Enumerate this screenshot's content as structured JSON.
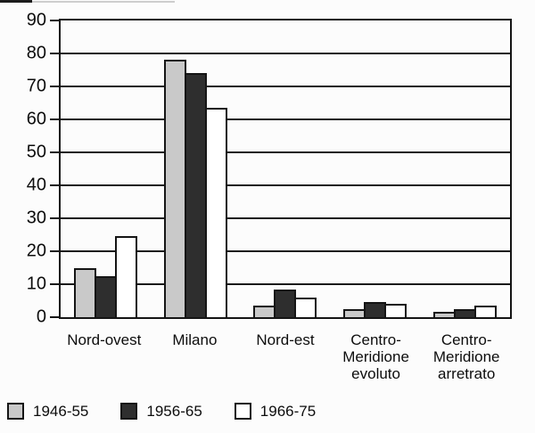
{
  "figure": {
    "background": "#fcfcfc",
    "ink": "#151515"
  },
  "chart_data": {
    "type": "bar",
    "title": "",
    "xlabel": "",
    "ylabel": "",
    "categories": [
      "Nord-ovest",
      "Milano",
      "Nord-est",
      "Centro-Meridione evoluto",
      "Centro-Meridione arretrato"
    ],
    "category_label_lines": [
      [
        "Nord-ovest"
      ],
      [
        "Milano"
      ],
      [
        "Nord-est"
      ],
      [
        "Centro-",
        "Meridione",
        "evoluto"
      ],
      [
        "Centro-",
        "Meridione",
        "arretrato"
      ]
    ],
    "series": [
      {
        "name": "1946-55",
        "fill": "#c9c9c9",
        "values": [
          15,
          78,
          3.5,
          2.5,
          1.5
        ]
      },
      {
        "name": "1956-65",
        "fill": "#2e2e2e",
        "values": [
          12.5,
          74,
          8.5,
          4.5,
          2.5
        ]
      },
      {
        "name": "1966-75",
        "fill": "#ffffff",
        "values": [
          24.5,
          63.5,
          6,
          4,
          3.5
        ]
      }
    ],
    "ylim": [
      0,
      90
    ],
    "ytick_step": 10,
    "ytick_labels": [
      "0",
      "10",
      "20",
      "30",
      "40",
      "50",
      "60",
      "70",
      "80",
      "90"
    ],
    "grid": "horizontal",
    "legend_position": "bottom-left"
  }
}
